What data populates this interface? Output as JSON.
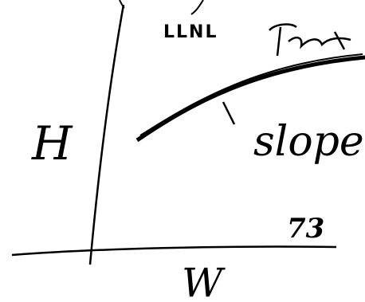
{
  "labels": {
    "lab": "LLNL",
    "y_axis": "H",
    "x_axis": "W",
    "page_number": "73",
    "annotation": "slope"
  }
}
